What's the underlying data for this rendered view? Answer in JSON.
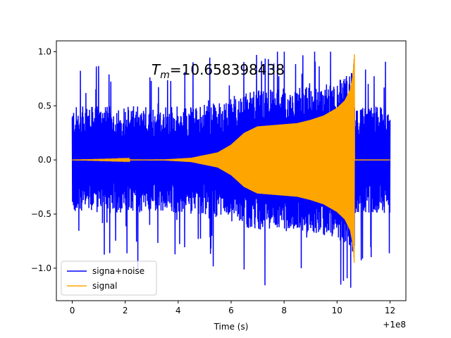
{
  "chart_data": {
    "type": "line",
    "title_prefix": "T",
    "title_sub": "m",
    "title_value": "=10.658398438",
    "xlabel": "Time (s)",
    "ylabel": "",
    "x_offset_label": "+1e8",
    "xlim": [
      -0.6,
      12.6
    ],
    "ylim": [
      -1.3,
      1.1
    ],
    "x_ticks": [
      0,
      2,
      4,
      6,
      8,
      10,
      12
    ],
    "x_tick_labels": [
      "0",
      "2",
      "4",
      "6",
      "8",
      "10",
      "12"
    ],
    "y_ticks": [
      -1.0,
      -0.5,
      0.0,
      0.5,
      1.0
    ],
    "y_tick_labels": [
      "−1.0",
      "−0.5",
      "0.0",
      "0.5",
      "1.0"
    ],
    "series": [
      {
        "name": "signa+noise",
        "color": "#0000ff",
        "kind": "noise_band",
        "x_range": [
          0,
          12
        ],
        "typical_amplitude": 0.45,
        "peak_max": 1.0,
        "peak_min": -1.18
      },
      {
        "name": "signal",
        "color": "#ffa500",
        "kind": "chirp",
        "x_range": [
          0,
          12
        ],
        "merger_time": 10.66,
        "envelope_points": [
          [
            0,
            0.0
          ],
          [
            3.5,
            0.005
          ],
          [
            4.5,
            0.02
          ],
          [
            5.5,
            0.07
          ],
          [
            6.0,
            0.14
          ],
          [
            6.5,
            0.25
          ],
          [
            7.0,
            0.31
          ],
          [
            7.5,
            0.32
          ],
          [
            8.0,
            0.33
          ],
          [
            8.5,
            0.34
          ],
          [
            9.0,
            0.37
          ],
          [
            9.5,
            0.41
          ],
          [
            10.0,
            0.48
          ],
          [
            10.3,
            0.55
          ],
          [
            10.5,
            0.65
          ],
          [
            10.6,
            0.78
          ],
          [
            10.66,
            1.0
          ]
        ],
        "min_at_merger": -0.97
      }
    ],
    "legend_position": "lower-left"
  }
}
